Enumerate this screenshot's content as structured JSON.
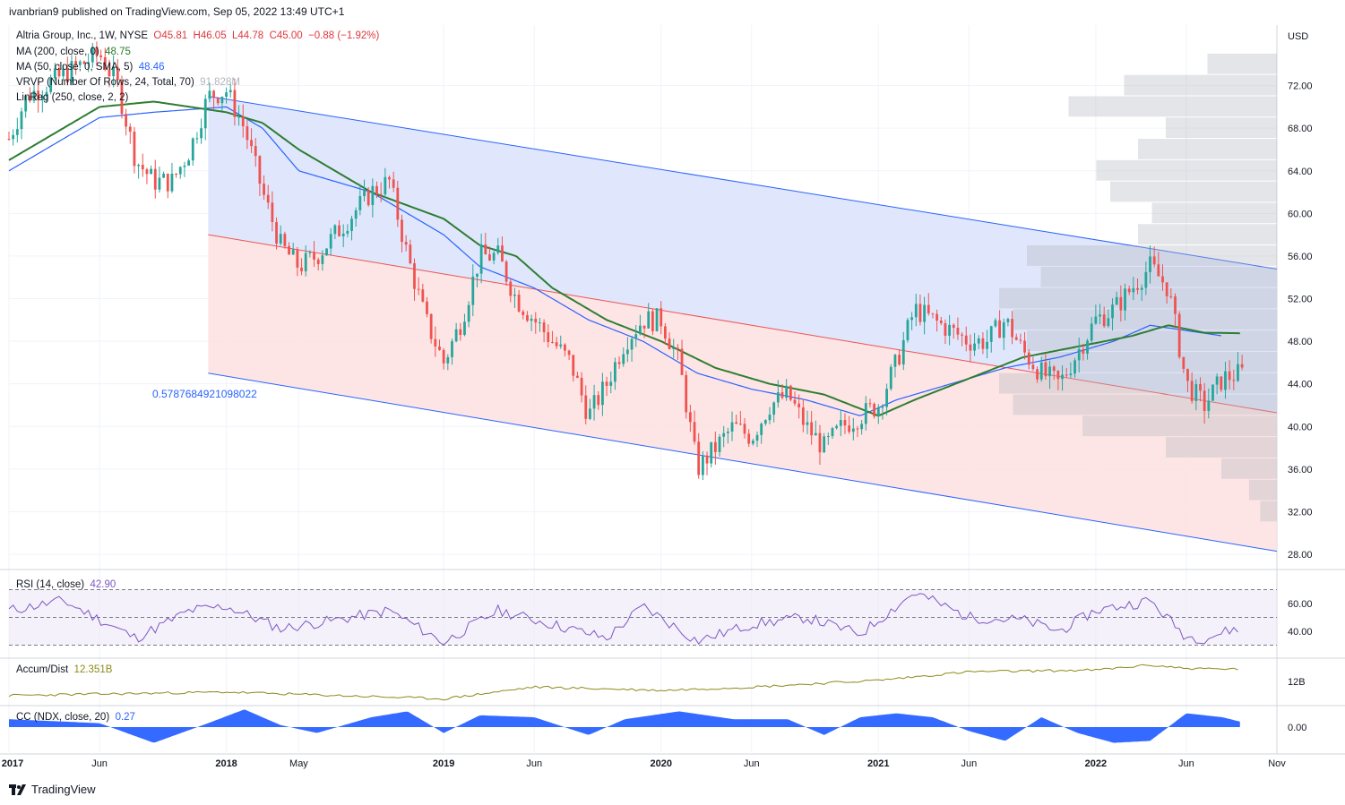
{
  "header": {
    "publisher": "ivanbrian9 published on TradingView.com, Sep 05, 2022 13:49 UTC+1"
  },
  "legend": {
    "symbol": "Altria Group, Inc., 1W, NYSE",
    "o": "O45.81",
    "h": "H46.05",
    "l": "L44.78",
    "c": "C45.00",
    "chg": "−0.88 (−1.92%)",
    "ma200_label": "MA (200, close, 0)",
    "ma200_value": "48.75",
    "ma50_label": "MA (50, close, 0, SMA, 5)",
    "ma50_value": "48.46",
    "vrvp_label": "VRVP (Number Of Rows, 24, Total, 70)",
    "vrvp_value": "91.828M",
    "linreg_label": "LinReg (250, close, 2, 2)",
    "linreg_corr": "0.5787684921098022"
  },
  "rsi": {
    "label": "RSI (14, close)",
    "value": "42.90"
  },
  "accum": {
    "label": "Accum/Dist",
    "value": "12.351B"
  },
  "cc": {
    "label": "CC (NDX, close, 20)",
    "value": "0.27"
  },
  "brand": {
    "name": "TradingView"
  },
  "colors": {
    "up": "#26a69a",
    "down": "#ef5350",
    "ma200": "#2e7d32",
    "ma50": "#2962ff",
    "channel_upper_fill": "#dbe3fb",
    "channel_lower_fill": "#fde0e0",
    "rsi": "#7e57c2",
    "accum": "#8d8a1a",
    "cc": "#2962ff"
  },
  "chart_data": {
    "type": "candlestick",
    "currency": "USD",
    "price_ticks": [
      "72.00",
      "68.00",
      "64.00",
      "60.00",
      "56.00",
      "52.00",
      "48.00",
      "44.00",
      "40.00",
      "36.00",
      "32.00",
      "28.00"
    ],
    "price_tick_values": [
      72,
      68,
      64,
      60,
      56,
      52,
      48,
      44,
      40,
      36,
      32,
      28
    ],
    "rsi_ticks": [
      "60.00",
      "40.00"
    ],
    "rsi_tick_values": [
      60,
      40
    ],
    "accum_ticks": [
      "12B"
    ],
    "cc_ticks": [
      "0.00"
    ],
    "time_ticks": [
      "2017",
      "Jun",
      "2018",
      "May",
      "2019",
      "Jun",
      "2020",
      "Jun",
      "2021",
      "Jun",
      "2022",
      "Jun",
      "Nov"
    ],
    "time_tick_values": [
      "2017-01",
      "2017-06",
      "2018-01",
      "2018-05",
      "2019-01",
      "2019-06",
      "2020-01",
      "2020-06",
      "2021-01",
      "2021-06",
      "2022-01",
      "2022-06",
      "2022-11"
    ],
    "price_anchors": [
      [
        "2017-01",
        67
      ],
      [
        "2017-02",
        71
      ],
      [
        "2017-04",
        73
      ],
      [
        "2017-06",
        75
      ],
      [
        "2017-07",
        72
      ],
      [
        "2017-08",
        65
      ],
      [
        "2017-09",
        63
      ],
      [
        "2017-10",
        63
      ],
      [
        "2017-11",
        66
      ],
      [
        "2017-12",
        71
      ],
      [
        "2018-01",
        71.5
      ],
      [
        "2018-02",
        68
      ],
      [
        "2018-03",
        62
      ],
      [
        "2018-04",
        57
      ],
      [
        "2018-05",
        55
      ],
      [
        "2018-06",
        56
      ],
      [
        "2018-07",
        58
      ],
      [
        "2018-08",
        60
      ],
      [
        "2018-09",
        62
      ],
      [
        "2018-10",
        63
      ],
      [
        "2018-11",
        56
      ],
      [
        "2018-12",
        50
      ],
      [
        "2019-01",
        46
      ],
      [
        "2019-02",
        50
      ],
      [
        "2019-03",
        56
      ],
      [
        "2019-04",
        56
      ],
      [
        "2019-05",
        52
      ],
      [
        "2019-06",
        50
      ],
      [
        "2019-07",
        48
      ],
      [
        "2019-08",
        46
      ],
      [
        "2019-09",
        41
      ],
      [
        "2019-10",
        44
      ],
      [
        "2019-11",
        48
      ],
      [
        "2019-12",
        50
      ],
      [
        "2020-01",
        50
      ],
      [
        "2020-02",
        46
      ],
      [
        "2020-03",
        36
      ],
      [
        "2020-04",
        38
      ],
      [
        "2020-05",
        40
      ],
      [
        "2020-06",
        39
      ],
      [
        "2020-07",
        42
      ],
      [
        "2020-08",
        43
      ],
      [
        "2020-09",
        40
      ],
      [
        "2020-10",
        38
      ],
      [
        "2020-11",
        40
      ],
      [
        "2020-12",
        41
      ],
      [
        "2021-01",
        42
      ],
      [
        "2021-02",
        46
      ],
      [
        "2021-03",
        51
      ],
      [
        "2021-04",
        50
      ],
      [
        "2021-05",
        49
      ],
      [
        "2021-06",
        48
      ],
      [
        "2021-07",
        48
      ],
      [
        "2021-08",
        50
      ],
      [
        "2021-09",
        47
      ],
      [
        "2021-10",
        45
      ],
      [
        "2021-11",
        44
      ],
      [
        "2021-12",
        47
      ],
      [
        "2022-01",
        50
      ],
      [
        "2022-02",
        51
      ],
      [
        "2022-03",
        53
      ],
      [
        "2022-04",
        55
      ],
      [
        "2022-05",
        53
      ],
      [
        "2022-06",
        44
      ],
      [
        "2022-07",
        42
      ],
      [
        "2022-08",
        44.5
      ],
      [
        "2022-09",
        45
      ]
    ],
    "ma200": [
      [
        "2017-01",
        65
      ],
      [
        "2017-06",
        70
      ],
      [
        "2017-09",
        70.5
      ],
      [
        "2018-01",
        69.5
      ],
      [
        "2018-03",
        68.5
      ],
      [
        "2018-05",
        66
      ],
      [
        "2018-09",
        62
      ],
      [
        "2019-01",
        59.5
      ],
      [
        "2019-03",
        57
      ],
      [
        "2019-05",
        56
      ],
      [
        "2019-07",
        53
      ],
      [
        "2019-10",
        50
      ],
      [
        "2020-01",
        48
      ],
      [
        "2020-04",
        45.5
      ],
      [
        "2020-07",
        44
      ],
      [
        "2020-10",
        43
      ],
      [
        "2021-01",
        41
      ],
      [
        "2021-03",
        42.5
      ],
      [
        "2021-06",
        44.5
      ],
      [
        "2021-09",
        46.5
      ],
      [
        "2021-12",
        47.5
      ],
      [
        "2022-03",
        48.5
      ],
      [
        "2022-05",
        49.5
      ],
      [
        "2022-07",
        48.8
      ],
      [
        "2022-09",
        48.75
      ]
    ],
    "ma50": [
      [
        "2017-01",
        64
      ],
      [
        "2017-06",
        69
      ],
      [
        "2017-09",
        69.5
      ],
      [
        "2018-01",
        70
      ],
      [
        "2018-03",
        68
      ],
      [
        "2018-05",
        64
      ],
      [
        "2018-09",
        62
      ],
      [
        "2019-01",
        58
      ],
      [
        "2019-03",
        55
      ],
      [
        "2019-06",
        53
      ],
      [
        "2019-09",
        50
      ],
      [
        "2019-12",
        48
      ],
      [
        "2020-03",
        45
      ],
      [
        "2020-06",
        43.5
      ],
      [
        "2020-09",
        42.5
      ],
      [
        "2020-12",
        41
      ],
      [
        "2021-02",
        42.5
      ],
      [
        "2021-05",
        44
      ],
      [
        "2021-08",
        45.5
      ],
      [
        "2021-11",
        46.5
      ],
      [
        "2022-02",
        48
      ],
      [
        "2022-04",
        49.5
      ],
      [
        "2022-06",
        49
      ],
      [
        "2022-08",
        48.5
      ]
    ],
    "linreg": {
      "start": "2017-12",
      "end": "2022-12",
      "upper": [
        71,
        54.5
      ],
      "mid": [
        58,
        41
      ],
      "lower": [
        45,
        28
      ]
    },
    "vrvp_rows": [
      {
        "price": 74,
        "volume": 0.25
      },
      {
        "price": 72,
        "volume": 0.55
      },
      {
        "price": 70,
        "volume": 0.75
      },
      {
        "price": 68,
        "volume": 0.4
      },
      {
        "price": 66,
        "volume": 0.5
      },
      {
        "price": 64,
        "volume": 0.65
      },
      {
        "price": 62,
        "volume": 0.6
      },
      {
        "price": 60,
        "volume": 0.45
      },
      {
        "price": 58,
        "volume": 0.5
      },
      {
        "price": 56,
        "volume": 0.9
      },
      {
        "price": 54,
        "volume": 0.85
      },
      {
        "price": 52,
        "volume": 1.0
      },
      {
        "price": 50,
        "volume": 0.95
      },
      {
        "price": 48,
        "volume": 0.9
      },
      {
        "price": 46,
        "volume": 0.85
      },
      {
        "price": 44,
        "volume": 1.0
      },
      {
        "price": 42,
        "volume": 0.95
      },
      {
        "price": 40,
        "volume": 0.7
      },
      {
        "price": 38,
        "volume": 0.4
      },
      {
        "price": 36,
        "volume": 0.2
      },
      {
        "price": 34,
        "volume": 0.1
      },
      {
        "price": 32,
        "volume": 0.06
      }
    ],
    "rsi_anchors": [
      [
        "2017-01",
        55
      ],
      [
        "2017-04",
        62
      ],
      [
        "2017-08",
        35
      ],
      [
        "2017-11",
        55
      ],
      [
        "2018-01",
        58
      ],
      [
        "2018-04",
        42
      ],
      [
        "2018-07",
        48
      ],
      [
        "2018-10",
        55
      ],
      [
        "2019-01",
        32
      ],
      [
        "2019-04",
        55
      ],
      [
        "2019-07",
        45
      ],
      [
        "2019-10",
        35
      ],
      [
        "2019-12",
        58
      ],
      [
        "2020-03",
        33
      ],
      [
        "2020-06",
        45
      ],
      [
        "2020-09",
        50
      ],
      [
        "2020-12",
        38
      ],
      [
        "2021-03",
        68
      ],
      [
        "2021-06",
        50
      ],
      [
        "2021-09",
        48
      ],
      [
        "2021-11",
        40
      ],
      [
        "2022-01",
        55
      ],
      [
        "2022-04",
        62
      ],
      [
        "2022-06",
        36
      ],
      [
        "2022-07",
        35
      ],
      [
        "2022-09",
        43
      ]
    ],
    "accum_anchors": [
      [
        "2017-01",
        10.8
      ],
      [
        "2018-01",
        11
      ],
      [
        "2019-01",
        10.6
      ],
      [
        "2019-06",
        11.3
      ],
      [
        "2020-01",
        11.1
      ],
      [
        "2020-06",
        11.3
      ],
      [
        "2021-01",
        11.7
      ],
      [
        "2021-06",
        12.2
      ],
      [
        "2022-01",
        12.3
      ],
      [
        "2022-04",
        12.6
      ],
      [
        "2022-06",
        12.4
      ],
      [
        "2022-09",
        12.35
      ]
    ],
    "cc_anchors": [
      [
        "2017-01",
        0.4
      ],
      [
        "2017-06",
        0.2
      ],
      [
        "2017-09",
        -0.8
      ],
      [
        "2017-12",
        0.2
      ],
      [
        "2018-02",
        0.9
      ],
      [
        "2018-04",
        0.1
      ],
      [
        "2018-06",
        -0.3
      ],
      [
        "2018-09",
        0.5
      ],
      [
        "2018-11",
        0.8
      ],
      [
        "2019-01",
        -0.3
      ],
      [
        "2019-03",
        0.6
      ],
      [
        "2019-06",
        0.5
      ],
      [
        "2019-09",
        -0.4
      ],
      [
        "2019-11",
        0.4
      ],
      [
        "2020-02",
        0.8
      ],
      [
        "2020-05",
        0.4
      ],
      [
        "2020-08",
        0.4
      ],
      [
        "2020-10",
        -0.4
      ],
      [
        "2020-12",
        0.5
      ],
      [
        "2021-02",
        0.7
      ],
      [
        "2021-04",
        0.5
      ],
      [
        "2021-06",
        -0.2
      ],
      [
        "2021-08",
        -0.7
      ],
      [
        "2021-10",
        0.5
      ],
      [
        "2021-12",
        -0.3
      ],
      [
        "2022-02",
        -0.8
      ],
      [
        "2022-04",
        -0.7
      ],
      [
        "2022-06",
        0.7
      ],
      [
        "2022-08",
        0.5
      ],
      [
        "2022-09",
        0.27
      ]
    ]
  }
}
